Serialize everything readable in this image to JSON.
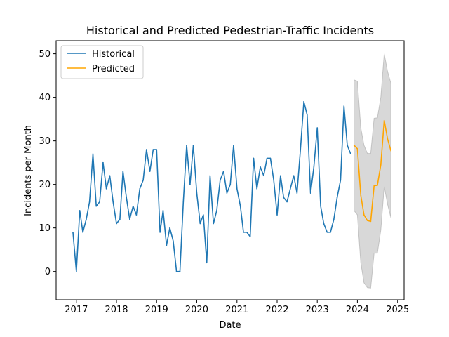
{
  "chart_data": {
    "type": "line",
    "title": "Historical and Predicted Pedestrian-Traffic Incidents",
    "xlabel": "Date",
    "ylabel": "Incidents per Month",
    "xlim": [
      "2016-07-01",
      "2025-03-01"
    ],
    "ylim": [
      -6.5,
      53
    ],
    "x_ticks": [
      "2017",
      "2018",
      "2019",
      "2020",
      "2021",
      "2022",
      "2023",
      "2024",
      "2025"
    ],
    "y_ticks": [
      0,
      10,
      20,
      30,
      40,
      50
    ],
    "grid": false,
    "legend_position": "top-left",
    "series": [
      {
        "name": "Historical",
        "color": "#1f77b4",
        "start": "2016-12",
        "values": [
          9,
          0,
          14,
          9,
          12,
          16,
          27,
          15,
          16,
          25,
          19,
          22,
          16,
          11,
          12,
          23,
          17,
          12,
          15,
          13,
          19,
          21,
          28,
          23,
          28,
          28,
          9,
          14,
          6,
          10,
          7,
          0,
          0,
          16,
          29,
          20,
          29,
          18,
          11,
          13,
          2,
          22,
          11,
          14,
          21,
          23,
          18,
          20,
          29,
          19,
          15,
          9,
          9,
          8,
          26,
          19,
          24,
          22,
          26,
          26,
          21,
          13,
          22,
          17,
          16,
          19,
          22,
          18,
          28,
          39,
          36,
          18,
          24,
          33,
          15,
          11,
          9,
          9,
          12,
          17,
          21,
          38,
          29,
          27
        ]
      },
      {
        "name": "Predicted",
        "color": "#ffa500",
        "start": "2023-12",
        "values": [
          29,
          28.2,
          17.5,
          13,
          11.7,
          11.5,
          19.7,
          19.8,
          24.5,
          34.7,
          30.5,
          27.7
        ],
        "lower": [
          14,
          13,
          2,
          -2.6,
          -3.7,
          -3.8,
          4.2,
          4.2,
          9.5,
          19.5,
          15.5,
          12.3
        ],
        "upper": [
          44,
          43.7,
          33,
          29,
          27.1,
          27.1,
          35.2,
          35.3,
          40,
          50,
          46,
          43.2
        ]
      }
    ],
    "band_color": "#a9a9a9"
  }
}
